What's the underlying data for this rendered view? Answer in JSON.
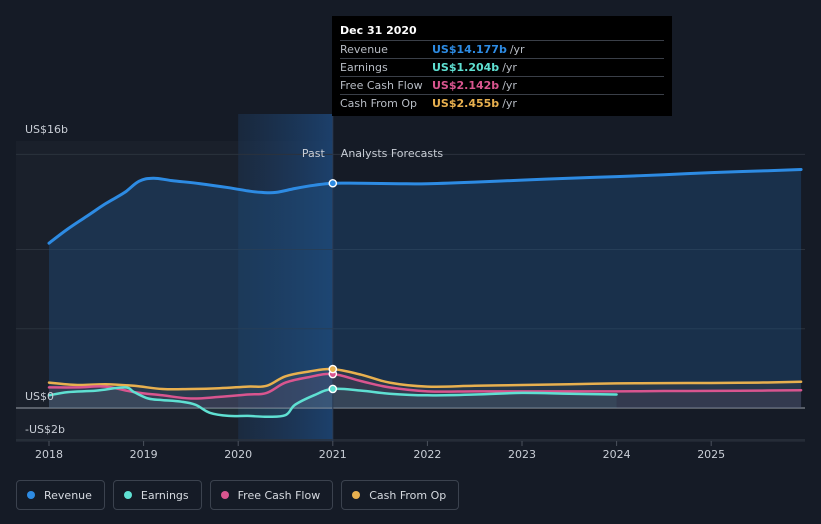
{
  "chart_data": {
    "type": "line",
    "y_axis_labels": {
      "top": "US$16b",
      "zero": "US$0",
      "bottom": "-US$2b"
    },
    "ylim": [
      -2,
      16
    ],
    "xlim": [
      2018,
      2025.95
    ],
    "x_ticks": [
      "2018",
      "2019",
      "2020",
      "2021",
      "2022",
      "2023",
      "2024",
      "2025"
    ],
    "grid": true,
    "divider_x": 2021,
    "past_label": "Past",
    "forecast_label": "Analysts Forecasts",
    "highlight_region": [
      2020,
      2021
    ],
    "series": [
      {
        "name": "Revenue",
        "color": "#2d8be3",
        "fill": true,
        "x": [
          2018,
          2018.2,
          2018.4,
          2018.6,
          2018.8,
          2018.95,
          2019.1,
          2019.3,
          2019.6,
          2019.9,
          2020.1,
          2020.25,
          2020.4,
          2020.6,
          2020.8,
          2021,
          2021.3,
          2021.7,
          2022,
          2022.5,
          2023,
          2023.5,
          2024,
          2024.5,
          2025,
          2025.5,
          2025.95
        ],
        "values": [
          10.4,
          11.3,
          12.1,
          12.9,
          13.6,
          14.3,
          14.5,
          14.35,
          14.15,
          13.9,
          13.7,
          13.6,
          13.6,
          13.85,
          14.05,
          14.18,
          14.18,
          14.15,
          14.15,
          14.25,
          14.38,
          14.5,
          14.6,
          14.72,
          14.85,
          14.95,
          15.05
        ]
      },
      {
        "name": "Earnings",
        "color": "#5fe0d2",
        "fill": false,
        "x": [
          2018,
          2018.2,
          2018.5,
          2018.8,
          2018.9,
          2019.05,
          2019.2,
          2019.4,
          2019.55,
          2019.7,
          2019.9,
          2020.1,
          2020.3,
          2020.5,
          2020.6,
          2020.8,
          2021,
          2021.3,
          2021.6,
          2022,
          2022.5,
          2023,
          2023.5,
          2024
        ],
        "values": [
          0.8,
          1.0,
          1.1,
          1.3,
          1.0,
          0.6,
          0.5,
          0.4,
          0.2,
          -0.3,
          -0.5,
          -0.5,
          -0.55,
          -0.45,
          0.2,
          0.8,
          1.204,
          1.1,
          0.9,
          0.8,
          0.85,
          0.95,
          0.9,
          0.85
        ]
      },
      {
        "name": "Free Cash Flow",
        "color": "#d9558f",
        "fill": false,
        "x": [
          2018,
          2018.3,
          2018.6,
          2018.9,
          2019.2,
          2019.5,
          2019.8,
          2020.1,
          2020.3,
          2020.5,
          2020.75,
          2021,
          2021.3,
          2021.6,
          2022,
          2022.5,
          2023,
          2023.5,
          2024,
          2024.5,
          2025,
          2025.5,
          2025.95
        ],
        "values": [
          1.3,
          1.3,
          1.35,
          1.0,
          0.8,
          0.6,
          0.7,
          0.85,
          0.95,
          1.6,
          1.95,
          2.142,
          1.7,
          1.3,
          1.05,
          1.05,
          1.05,
          1.05,
          1.05,
          1.07,
          1.08,
          1.1,
          1.12
        ]
      },
      {
        "name": "Cash From Op",
        "color": "#e8b04f",
        "fill": false,
        "x": [
          2018,
          2018.3,
          2018.6,
          2018.9,
          2019.2,
          2019.5,
          2019.8,
          2020.1,
          2020.3,
          2020.5,
          2020.75,
          2021,
          2021.3,
          2021.6,
          2022,
          2022.5,
          2023,
          2023.5,
          2024,
          2024.5,
          2025,
          2025.5,
          2025.95
        ],
        "values": [
          1.6,
          1.45,
          1.5,
          1.4,
          1.2,
          1.2,
          1.25,
          1.35,
          1.4,
          2.0,
          2.3,
          2.455,
          2.1,
          1.6,
          1.35,
          1.4,
          1.45,
          1.5,
          1.55,
          1.57,
          1.58,
          1.6,
          1.65
        ]
      }
    ]
  },
  "tooltip": {
    "date": "Dec 31 2020",
    "rows": [
      {
        "label": "Revenue",
        "value": "US$14.177b",
        "unit": "/yr",
        "color": "#2d8be3"
      },
      {
        "label": "Earnings",
        "value": "US$1.204b",
        "unit": "/yr",
        "color": "#5fe0d2"
      },
      {
        "label": "Free Cash Flow",
        "value": "US$2.142b",
        "unit": "/yr",
        "color": "#d9558f"
      },
      {
        "label": "Cash From Op",
        "value": "US$2.455b",
        "unit": "/yr",
        "color": "#e8b04f"
      }
    ]
  },
  "legend": {
    "items": [
      {
        "label": "Revenue",
        "color": "#2d8be3"
      },
      {
        "label": "Earnings",
        "color": "#5fe0d2"
      },
      {
        "label": "Free Cash Flow",
        "color": "#d9558f"
      },
      {
        "label": "Cash From Op",
        "color": "#e8b04f"
      }
    ]
  }
}
